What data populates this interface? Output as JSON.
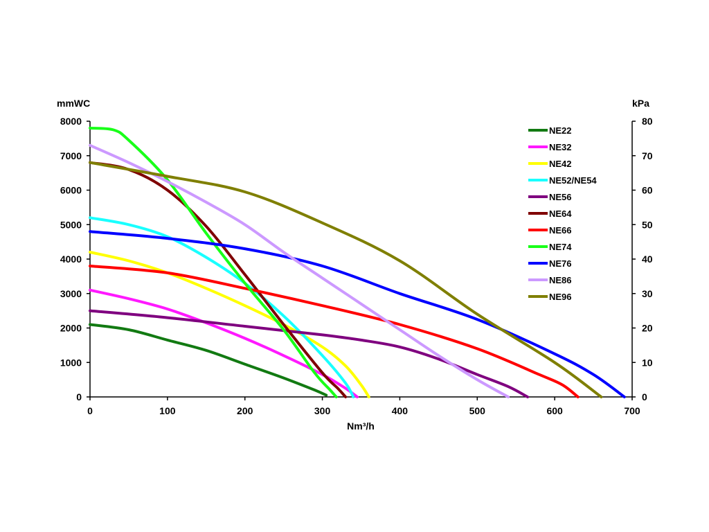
{
  "chart_data": {
    "type": "line",
    "title": "",
    "xlabel": "Nm³/h",
    "ylabel_left": "mmWC",
    "ylabel_right": "kPa",
    "xlim": [
      0,
      700
    ],
    "ylim_left": [
      0,
      8000
    ],
    "ylim_right": [
      0,
      80
    ],
    "x_ticks": [
      0,
      100,
      200,
      300,
      400,
      500,
      600,
      700
    ],
    "y_ticks_left": [
      0,
      1000,
      2000,
      3000,
      4000,
      5000,
      6000,
      7000,
      8000
    ],
    "y_ticks_right": [
      0,
      10,
      20,
      30,
      40,
      50,
      60,
      70,
      80
    ],
    "grid": false,
    "legend_position": "top-right",
    "series": [
      {
        "name": "NE22",
        "color": "#127a12",
        "points": [
          [
            0,
            2100
          ],
          [
            50,
            1950
          ],
          [
            100,
            1650
          ],
          [
            150,
            1350
          ],
          [
            200,
            950
          ],
          [
            250,
            550
          ],
          [
            290,
            200
          ],
          [
            305,
            50
          ]
        ]
      },
      {
        "name": "NE32",
        "color": "#ff19ff",
        "points": [
          [
            0,
            3100
          ],
          [
            50,
            2850
          ],
          [
            100,
            2550
          ],
          [
            150,
            2150
          ],
          [
            200,
            1700
          ],
          [
            250,
            1200
          ],
          [
            300,
            650
          ],
          [
            330,
            250
          ],
          [
            345,
            0
          ]
        ]
      },
      {
        "name": "NE42",
        "color": "#ffff00",
        "points": [
          [
            0,
            4200
          ],
          [
            50,
            3950
          ],
          [
            100,
            3600
          ],
          [
            150,
            3150
          ],
          [
            200,
            2650
          ],
          [
            250,
            2100
          ],
          [
            300,
            1450
          ],
          [
            330,
            900
          ],
          [
            350,
            350
          ],
          [
            360,
            0
          ]
        ]
      },
      {
        "name": "NE52/NE54",
        "color": "#19ffff",
        "points": [
          [
            0,
            5200
          ],
          [
            50,
            5000
          ],
          [
            100,
            4650
          ],
          [
            150,
            4050
          ],
          [
            200,
            3300
          ],
          [
            250,
            2350
          ],
          [
            300,
            1200
          ],
          [
            330,
            400
          ],
          [
            340,
            0
          ]
        ]
      },
      {
        "name": "NE56",
        "color": "#7f007f",
        "points": [
          [
            0,
            2500
          ],
          [
            100,
            2300
          ],
          [
            200,
            2050
          ],
          [
            300,
            1800
          ],
          [
            350,
            1650
          ],
          [
            400,
            1450
          ],
          [
            450,
            1100
          ],
          [
            500,
            650
          ],
          [
            540,
            300
          ],
          [
            565,
            0
          ]
        ]
      },
      {
        "name": "NE64",
        "color": "#7f0000",
        "points": [
          [
            0,
            6800
          ],
          [
            50,
            6600
          ],
          [
            100,
            6000
          ],
          [
            150,
            4950
          ],
          [
            200,
            3550
          ],
          [
            250,
            2100
          ],
          [
            300,
            700
          ],
          [
            320,
            250
          ],
          [
            330,
            0
          ]
        ]
      },
      {
        "name": "NE66",
        "color": "#ff0000",
        "points": [
          [
            0,
            3800
          ],
          [
            100,
            3600
          ],
          [
            200,
            3150
          ],
          [
            300,
            2650
          ],
          [
            400,
            2100
          ],
          [
            500,
            1400
          ],
          [
            580,
            650
          ],
          [
            610,
            350
          ],
          [
            630,
            0
          ]
        ]
      },
      {
        "name": "NE74",
        "color": "#19ff19",
        "points": [
          [
            0,
            7800
          ],
          [
            30,
            7750
          ],
          [
            50,
            7450
          ],
          [
            100,
            6300
          ],
          [
            150,
            4750
          ],
          [
            200,
            3300
          ],
          [
            250,
            1950
          ],
          [
            290,
            700
          ],
          [
            310,
            200
          ],
          [
            318,
            0
          ]
        ]
      },
      {
        "name": "NE76",
        "color": "#0000ff",
        "points": [
          [
            0,
            4800
          ],
          [
            100,
            4600
          ],
          [
            200,
            4300
          ],
          [
            300,
            3800
          ],
          [
            400,
            3000
          ],
          [
            500,
            2250
          ],
          [
            600,
            1250
          ],
          [
            650,
            650
          ],
          [
            690,
            0
          ]
        ]
      },
      {
        "name": "NE86",
        "color": "#cc99ff",
        "points": [
          [
            0,
            7300
          ],
          [
            50,
            6800
          ],
          [
            100,
            6250
          ],
          [
            150,
            5650
          ],
          [
            200,
            5000
          ],
          [
            250,
            4200
          ],
          [
            300,
            3450
          ],
          [
            350,
            2700
          ],
          [
            400,
            1950
          ],
          [
            450,
            1200
          ],
          [
            500,
            500
          ],
          [
            540,
            0
          ]
        ]
      },
      {
        "name": "NE96",
        "color": "#7f7f00",
        "points": [
          [
            0,
            6800
          ],
          [
            100,
            6400
          ],
          [
            200,
            5950
          ],
          [
            300,
            5050
          ],
          [
            400,
            3950
          ],
          [
            500,
            2400
          ],
          [
            600,
            1000
          ],
          [
            660,
            0
          ]
        ]
      }
    ]
  }
}
